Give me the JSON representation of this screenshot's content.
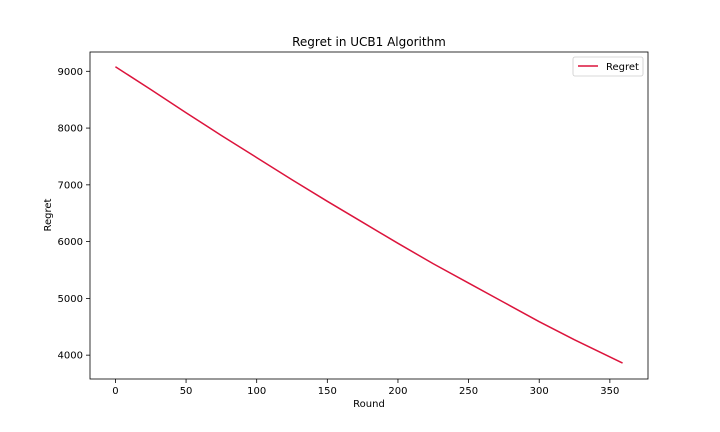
{
  "chart_data": {
    "type": "line",
    "title": "Regret in UCB1 Algorithm",
    "xlabel": "Round",
    "ylabel": "Regret",
    "xlim": [
      -18,
      377
    ],
    "ylim": [
      3580,
      9340
    ],
    "xticks": [
      0,
      50,
      100,
      150,
      200,
      250,
      300,
      350
    ],
    "yticks": [
      4000,
      5000,
      6000,
      7000,
      8000,
      9000
    ],
    "grid": false,
    "legend_position": "top-right",
    "series": [
      {
        "name": "Regret",
        "color": "#dc143c",
        "x": [
          0,
          25,
          50,
          75,
          100,
          125,
          150,
          175,
          200,
          225,
          250,
          275,
          300,
          325,
          359
        ],
        "y": [
          9080,
          8680,
          8270,
          7870,
          7480,
          7090,
          6710,
          6340,
          5970,
          5610,
          5270,
          4930,
          4590,
          4270,
          3860
        ]
      }
    ]
  }
}
